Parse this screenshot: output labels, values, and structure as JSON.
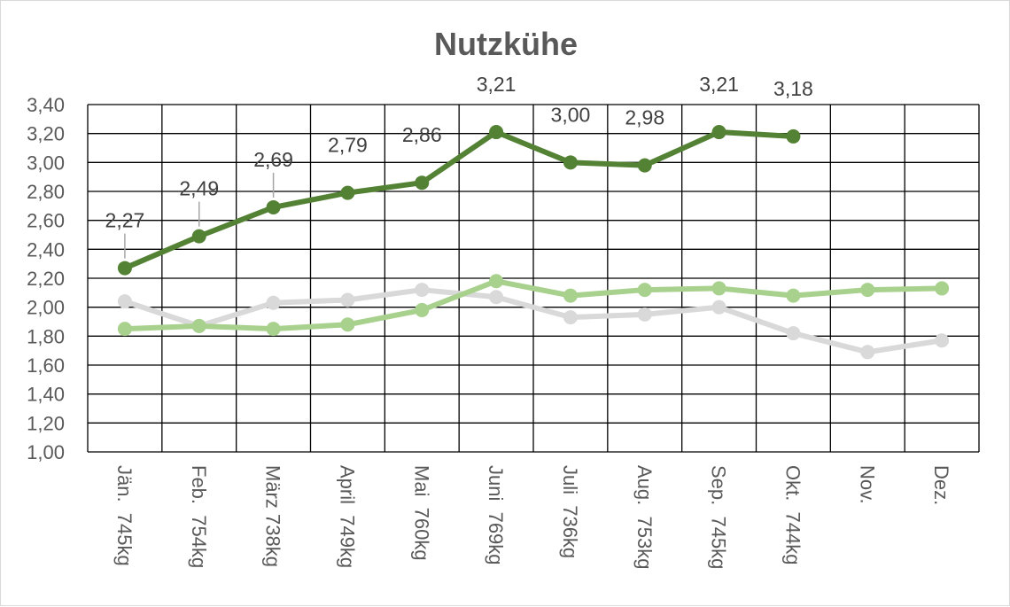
{
  "chart_data": {
    "type": "line",
    "title": "Nutzkühe",
    "xlabel": "",
    "ylabel": "",
    "ylim": [
      1.0,
      3.4
    ],
    "yticks": [
      "1,00",
      "1,20",
      "1,40",
      "1,60",
      "1,80",
      "2,00",
      "2,20",
      "2,40",
      "2,60",
      "2,80",
      "3,00",
      "3,20",
      "3,40"
    ],
    "categories": [
      "Jän.  745kg",
      "Feb.  754kg",
      "März 738kg",
      "April  749kg",
      "Mai  760kg",
      "Juni  769kg",
      "Juli  736kg",
      "Aug.  753kg",
      "Sep.  745kg",
      "Okt.  744kg",
      "Nov.",
      "Dez."
    ],
    "grid": true,
    "legend": "none",
    "series": [
      {
        "color": "#548235",
        "values": [
          2.27,
          2.49,
          2.69,
          2.79,
          2.86,
          3.21,
          3.0,
          2.98,
          3.21,
          3.18,
          null,
          null
        ],
        "data_labels": [
          "2,27",
          "2,49",
          "2,69",
          "2,79",
          "2,86",
          "3,21",
          "3,00",
          "2,98",
          "3,21",
          "3,18",
          "",
          ""
        ]
      },
      {
        "color": "#a9d18e",
        "values": [
          1.85,
          1.87,
          1.85,
          1.88,
          1.98,
          2.18,
          2.08,
          2.12,
          2.13,
          2.08,
          2.12,
          2.13
        ]
      },
      {
        "color": "#d9d9d9",
        "values": [
          2.04,
          1.87,
          2.03,
          2.05,
          2.12,
          2.07,
          1.93,
          1.95,
          2.0,
          1.82,
          1.69,
          1.77
        ]
      }
    ]
  }
}
